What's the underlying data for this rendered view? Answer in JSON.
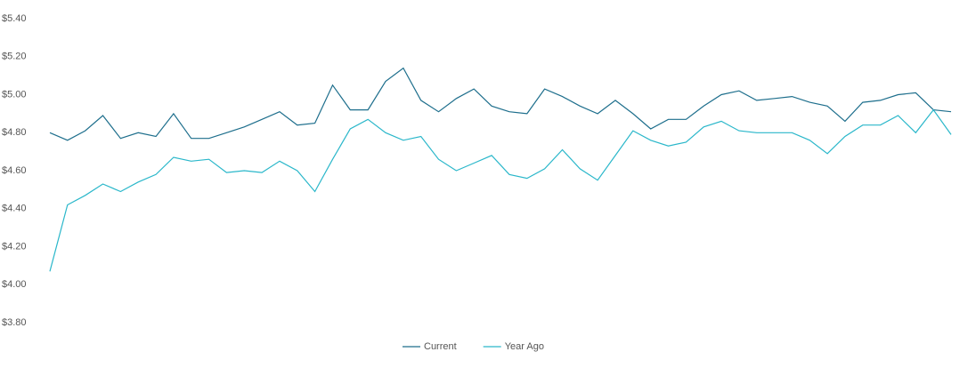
{
  "chart_data": {
    "type": "line",
    "series": [
      {
        "name": "Current",
        "color": "#1d6e8c",
        "values": [
          4.8,
          4.76,
          4.81,
          4.89,
          4.77,
          4.8,
          4.78,
          4.9,
          4.77,
          4.77,
          4.8,
          4.83,
          4.87,
          4.91,
          4.84,
          4.85,
          5.05,
          4.92,
          4.92,
          5.07,
          5.14,
          4.97,
          4.91,
          4.98,
          5.03,
          4.94,
          4.91,
          4.9,
          5.03,
          4.99,
          4.94,
          4.9,
          4.97,
          4.9,
          4.82,
          4.87,
          4.87,
          4.94,
          5.0,
          5.02,
          4.97,
          4.98,
          4.99,
          4.96,
          4.94,
          4.86,
          4.96,
          4.97,
          5.0,
          5.01,
          4.92,
          4.91
        ]
      },
      {
        "name": "Year Ago",
        "color": "#2ab7ca",
        "values": [
          4.07,
          4.42,
          4.47,
          4.53,
          4.49,
          4.54,
          4.58,
          4.67,
          4.65,
          4.66,
          4.59,
          4.6,
          4.59,
          4.65,
          4.6,
          4.49,
          4.66,
          4.82,
          4.87,
          4.8,
          4.76,
          4.78,
          4.66,
          4.6,
          4.64,
          4.68,
          4.58,
          4.56,
          4.61,
          4.71,
          4.61,
          4.55,
          4.68,
          4.81,
          4.76,
          4.73,
          4.75,
          4.83,
          4.86,
          4.81,
          4.8,
          4.8,
          4.8,
          4.76,
          4.69,
          4.78,
          4.84,
          4.84,
          4.89,
          4.8,
          4.92,
          4.79
        ]
      }
    ],
    "ylim": [
      3.8,
      5.4
    ],
    "yticks": [
      {
        "value": 3.8,
        "label": "$3.80"
      },
      {
        "value": 4.0,
        "label": "$4.00"
      },
      {
        "value": 4.2,
        "label": "$4.20"
      },
      {
        "value": 4.4,
        "label": "$4.40"
      },
      {
        "value": 4.6,
        "label": "$4.60"
      },
      {
        "value": 4.8,
        "label": "$4.80"
      },
      {
        "value": 5.0,
        "label": "$5.00"
      },
      {
        "value": 5.2,
        "label": "$5.20"
      },
      {
        "value": 5.4,
        "label": "$5.40"
      }
    ],
    "grid": false,
    "legend": "bottom"
  }
}
